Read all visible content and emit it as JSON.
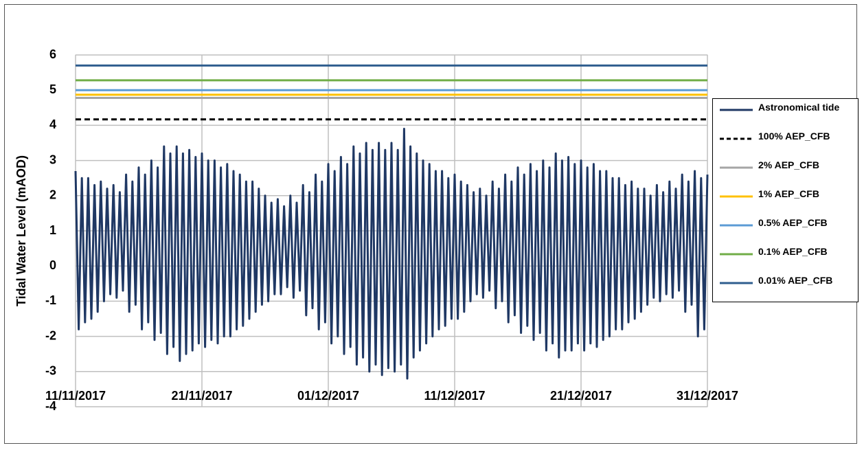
{
  "chart_data": {
    "type": "line",
    "ylabel": "Tidal Water Level (mAOD)",
    "ylim": [
      -4,
      6
    ],
    "yticks": [
      -4,
      -3,
      -2,
      -1,
      0,
      1,
      2,
      3,
      4,
      5,
      6
    ],
    "xlim": [
      "11/11/2017",
      "31/12/2017"
    ],
    "xticks": [
      "11/11/2017",
      "21/11/2017",
      "01/12/2017",
      "11/12/2017",
      "21/12/2017",
      "31/12/2017"
    ],
    "grid": true,
    "legend": "right",
    "series": [
      {
        "name": "Astronomical tide",
        "color": "#1f3864",
        "x": [
          "11/11/2017",
          "11/11/2017",
          "11/11/2017",
          "11/11/2017",
          "12/11/2017",
          "12/11/2017",
          "12/11/2017",
          "12/11/2017",
          "13/11/2017",
          "13/11/2017",
          "13/11/2017",
          "13/11/2017",
          "14/11/2017",
          "14/11/2017",
          "14/11/2017",
          "14/11/2017",
          "15/11/2017",
          "15/11/2017",
          "15/11/2017",
          "15/11/2017",
          "16/11/2017",
          "16/11/2017",
          "16/11/2017",
          "16/11/2017",
          "17/11/2017",
          "17/11/2017",
          "17/11/2017",
          "17/11/2017",
          "18/11/2017",
          "18/11/2017",
          "18/11/2017",
          "18/11/2017",
          "19/11/2017",
          "19/11/2017",
          "19/11/2017",
          "19/11/2017",
          "20/11/2017",
          "20/11/2017",
          "20/11/2017",
          "20/11/2017",
          "21/11/2017",
          "21/11/2017",
          "21/11/2017",
          "21/11/2017",
          "22/11/2017",
          "22/11/2017",
          "22/11/2017",
          "22/11/2017",
          "23/11/2017",
          "23/11/2017",
          "23/11/2017",
          "23/11/2017",
          "24/11/2017",
          "24/11/2017",
          "24/11/2017",
          "24/11/2017",
          "25/11/2017",
          "25/11/2017",
          "25/11/2017",
          "25/11/2017",
          "26/11/2017",
          "26/11/2017",
          "26/11/2017",
          "26/11/2017",
          "27/11/2017",
          "27/11/2017",
          "27/11/2017",
          "27/11/2017",
          "28/11/2017",
          "28/11/2017",
          "28/11/2017",
          "28/11/2017",
          "29/11/2017",
          "29/11/2017",
          "29/11/2017",
          "29/11/2017",
          "30/11/2017",
          "30/11/2017",
          "30/11/2017",
          "30/11/2017",
          "01/12/2017",
          "01/12/2017",
          "01/12/2017",
          "01/12/2017",
          "02/12/2017",
          "02/12/2017",
          "02/12/2017",
          "02/12/2017",
          "03/12/2017",
          "03/12/2017",
          "03/12/2017",
          "03/12/2017",
          "04/12/2017",
          "04/12/2017",
          "04/12/2017",
          "04/12/2017",
          "05/12/2017",
          "05/12/2017",
          "05/12/2017",
          "05/12/2017",
          "06/12/2017",
          "06/12/2017",
          "06/12/2017",
          "06/12/2017",
          "07/12/2017",
          "07/12/2017",
          "07/12/2017",
          "07/12/2017",
          "08/12/2017",
          "08/12/2017",
          "08/12/2017",
          "08/12/2017",
          "09/12/2017",
          "09/12/2017",
          "09/12/2017",
          "09/12/2017",
          "10/12/2017",
          "10/12/2017",
          "10/12/2017",
          "10/12/2017",
          "11/12/2017",
          "11/12/2017",
          "11/12/2017",
          "11/12/2017",
          "12/12/2017",
          "12/12/2017",
          "12/12/2017",
          "12/12/2017",
          "13/12/2017",
          "13/12/2017",
          "13/12/2017",
          "13/12/2017",
          "14/12/2017",
          "14/12/2017",
          "14/12/2017",
          "14/12/2017",
          "15/12/2017",
          "15/12/2017",
          "15/12/2017",
          "15/12/2017",
          "16/12/2017",
          "16/12/2017",
          "16/12/2017",
          "16/12/2017",
          "17/12/2017",
          "17/12/2017",
          "17/12/2017",
          "17/12/2017",
          "18/12/2017",
          "18/12/2017",
          "18/12/2017",
          "18/12/2017",
          "19/12/2017",
          "19/12/2017",
          "19/12/2017",
          "19/12/2017",
          "20/12/2017",
          "20/12/2017",
          "20/12/2017",
          "20/12/2017",
          "21/12/2017",
          "21/12/2017",
          "21/12/2017",
          "21/12/2017",
          "22/12/2017",
          "22/12/2017",
          "22/12/2017",
          "22/12/2017",
          "23/12/2017",
          "23/12/2017",
          "23/12/2017",
          "23/12/2017",
          "24/12/2017",
          "24/12/2017",
          "24/12/2017",
          "24/12/2017",
          "25/12/2017",
          "25/12/2017",
          "25/12/2017",
          "25/12/2017",
          "26/12/2017",
          "26/12/2017",
          "26/12/2017",
          "26/12/2017",
          "27/12/2017",
          "27/12/2017",
          "27/12/2017",
          "27/12/2017",
          "28/12/2017",
          "28/12/2017",
          "28/12/2017",
          "28/12/2017",
          "29/12/2017",
          "29/12/2017",
          "29/12/2017",
          "29/12/2017",
          "30/12/2017",
          "30/12/2017",
          "30/12/2017",
          "30/12/2017",
          "31/12/2017"
        ],
        "values": [
          2.7,
          -1.8,
          2.5,
          -1.6,
          2.5,
          -1.5,
          2.3,
          -1.3,
          2.4,
          -1.0,
          2.2,
          -0.8,
          2.3,
          -0.9,
          2.1,
          -0.7,
          2.6,
          -1.3,
          2.4,
          -1.1,
          2.8,
          -1.8,
          2.6,
          -1.6,
          3.0,
          -2.1,
          2.8,
          -1.9,
          3.4,
          -2.5,
          3.2,
          -2.3,
          3.4,
          -2.7,
          3.2,
          -2.5,
          3.3,
          -2.4,
          3.1,
          -2.2,
          3.2,
          -2.3,
          3.0,
          -2.1,
          3.0,
          -2.2,
          2.8,
          -2.0,
          2.9,
          -2.0,
          2.7,
          -1.8,
          2.6,
          -1.7,
          2.4,
          -1.5,
          2.4,
          -1.3,
          2.2,
          -1.1,
          2.0,
          -1.0,
          1.8,
          -0.8,
          1.9,
          -0.8,
          1.7,
          -0.6,
          2.0,
          -0.9,
          1.8,
          -0.7,
          2.3,
          -1.4,
          2.1,
          -1.2,
          2.6,
          -1.8,
          2.4,
          -1.6,
          2.9,
          -2.2,
          2.7,
          -2.0,
          3.1,
          -2.5,
          2.9,
          -2.3,
          3.4,
          -2.8,
          3.2,
          -2.6,
          3.5,
          -3.0,
          3.3,
          -2.8,
          3.5,
          -3.1,
          3.3,
          -2.9,
          3.5,
          -3.0,
          3.3,
          -2.8,
          3.9,
          -3.2,
          3.4,
          -2.6,
          3.2,
          -2.4,
          3.0,
          -2.2,
          2.9,
          -2.0,
          2.7,
          -1.8,
          2.7,
          -1.7,
          2.5,
          -1.5,
          2.6,
          -1.5,
          2.4,
          -1.3,
          2.3,
          -1.0,
          2.1,
          -0.8,
          2.2,
          -0.9,
          2.0,
          -0.7,
          2.4,
          -1.2,
          2.2,
          -1.0,
          2.6,
          -1.6,
          2.4,
          -1.4,
          2.8,
          -1.9,
          2.6,
          -1.7,
          2.9,
          -2.1,
          2.7,
          -1.9,
          3.0,
          -2.4,
          2.8,
          -2.2,
          3.2,
          -2.6,
          3.0,
          -2.4,
          3.1,
          -2.4,
          2.9,
          -2.2,
          3.0,
          -2.4,
          2.8,
          -2.2,
          2.9,
          -2.3,
          2.7,
          -2.1,
          2.7,
          -2.0,
          2.5,
          -1.8,
          2.5,
          -1.8,
          2.3,
          -1.6,
          2.4,
          -1.5,
          2.2,
          -1.3,
          2.2,
          -1.1,
          2.0,
          -0.9,
          2.3,
          -1.0,
          2.1,
          -0.8,
          2.4,
          -0.9,
          2.2,
          -0.7,
          2.6,
          -1.3,
          2.4,
          -1.1,
          2.7,
          -2.0,
          2.5,
          -1.8,
          2.6
        ]
      },
      {
        "name": "100% AEP_CFB",
        "color": "#000000",
        "y": 4.17,
        "dash": true
      },
      {
        "name": "2% AEP_CFB",
        "color": "#a5a5a5",
        "y": 4.78
      },
      {
        "name": "1% AEP_CFB",
        "color": "#ffc000",
        "y": 4.87
      },
      {
        "name": "0.5% AEP_CFB",
        "color": "#5b9bd5",
        "y": 5.0
      },
      {
        "name": "0.1% AEP_CFB",
        "color": "#70ad47",
        "y": 5.28
      },
      {
        "name": "0.01% AEP_CFB",
        "color": "#2e5d8e",
        "y": 5.7
      }
    ]
  }
}
